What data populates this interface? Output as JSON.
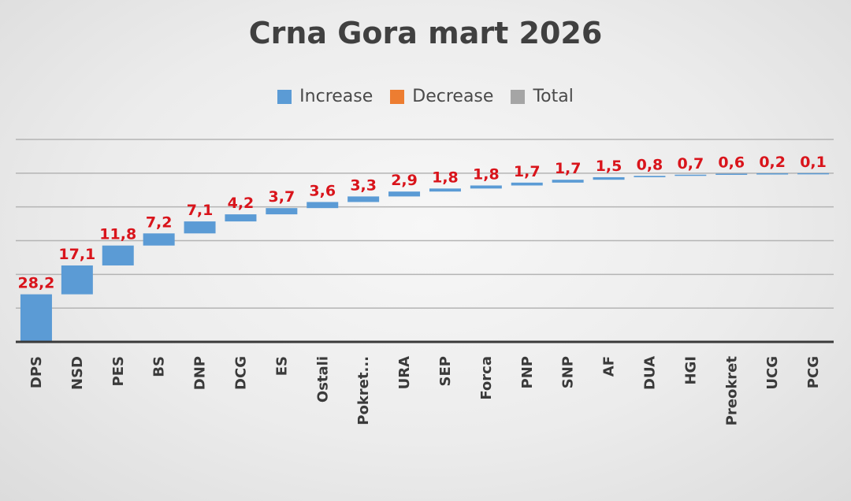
{
  "chart_data": {
    "type": "bar",
    "subtype": "waterfall",
    "title": "Crna Gora mart 2026",
    "legend": [
      {
        "label": "Increase",
        "color": "#5b9bd5"
      },
      {
        "label": "Decrease",
        "color": "#ed7d31"
      },
      {
        "label": "Total",
        "color": "#a5a5a5"
      }
    ],
    "legend_position": "top",
    "categories": [
      "DPS",
      "NSD",
      "PES",
      "BS",
      "DNP",
      "DCG",
      "ES",
      "Ostali",
      "Pokret...",
      "URA",
      "SEP",
      "Forca",
      "PNP",
      "SNP",
      "AF",
      "DUA",
      "HGI",
      "Preokret",
      "UCG",
      "PCG"
    ],
    "values": [
      28.2,
      17.1,
      11.8,
      7.2,
      7.1,
      4.2,
      3.7,
      3.6,
      3.3,
      2.9,
      1.8,
      1.8,
      1.7,
      1.7,
      1.5,
      0.8,
      0.7,
      0.6,
      0.2,
      0.1
    ],
    "value_labels": [
      "28,2",
      "17,1",
      "11,8",
      "7,2",
      "7,1",
      "4,2",
      "3,7",
      "3,6",
      "3,3",
      "2,9",
      "1,8",
      "1,8",
      "1,7",
      "1,7",
      "1,5",
      "0,8",
      "0,7",
      "0,6",
      "0,2",
      "0,1"
    ],
    "label_color": "#d9141b",
    "ylim": [
      0,
      120
    ],
    "grid": true,
    "xlabel": "",
    "ylabel": ""
  }
}
